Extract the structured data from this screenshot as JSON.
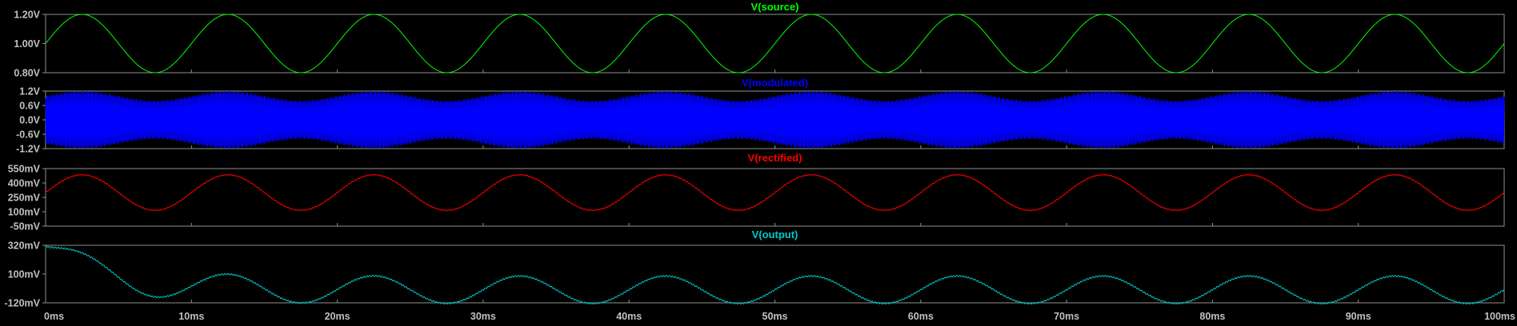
{
  "chart_data": [
    {
      "type": "line",
      "title": "V(source)",
      "color": "#00ff00",
      "y_ticks": [
        "1.20V",
        "1.00V",
        "0.80V"
      ],
      "ylim": [
        0.8,
        1.2
      ],
      "signal": {
        "kind": "sine",
        "offset": 1.0,
        "amplitude": 0.2,
        "frequency_hz": 100,
        "phase_deg": 0
      }
    },
    {
      "type": "line",
      "title": "V(modulated)",
      "color": "#0000ff",
      "y_ticks": [
        "1.2V",
        "0.6V",
        "0.0V",
        "-0.6V",
        "-1.2V"
      ],
      "ylim": [
        -1.2,
        1.2
      ],
      "signal": {
        "kind": "am",
        "carrier_amplitude": 1.0,
        "modulation_depth": 0.2,
        "modulation_frequency_hz": 100
      }
    },
    {
      "type": "line",
      "title": "V(rectified)",
      "color": "#ff0000",
      "y_ticks": [
        "550mV",
        "400mV",
        "250mV",
        "100mV",
        "-50mV"
      ],
      "ylim": [
        -50,
        550
      ],
      "signal": {
        "kind": "sine",
        "offset": 300,
        "amplitude": 185,
        "frequency_hz": 100,
        "phase_deg": 0,
        "ripple": 5
      }
    },
    {
      "type": "line",
      "title": "V(output)",
      "color": "#00c8c8",
      "y_ticks": [
        "320mV",
        "100mV",
        "-120mV"
      ],
      "ylim": [
        -120,
        320
      ],
      "signal": {
        "kind": "transient_sine",
        "offset": -20,
        "amplitude": 105,
        "frequency_hz": 100,
        "phase_deg": 0,
        "start_value": 310,
        "decay_ms": 4,
        "ripple": 5
      }
    }
  ],
  "x_axis": {
    "ticks": [
      "0ms",
      "10ms",
      "20ms",
      "30ms",
      "40ms",
      "50ms",
      "60ms",
      "70ms",
      "80ms",
      "90ms",
      "100ms"
    ],
    "xlim": [
      0,
      100
    ],
    "unit": "ms"
  },
  "grid": false,
  "style": {
    "background": "#000000",
    "frame": "#909090",
    "tick_text": "#c0c0c0"
  }
}
